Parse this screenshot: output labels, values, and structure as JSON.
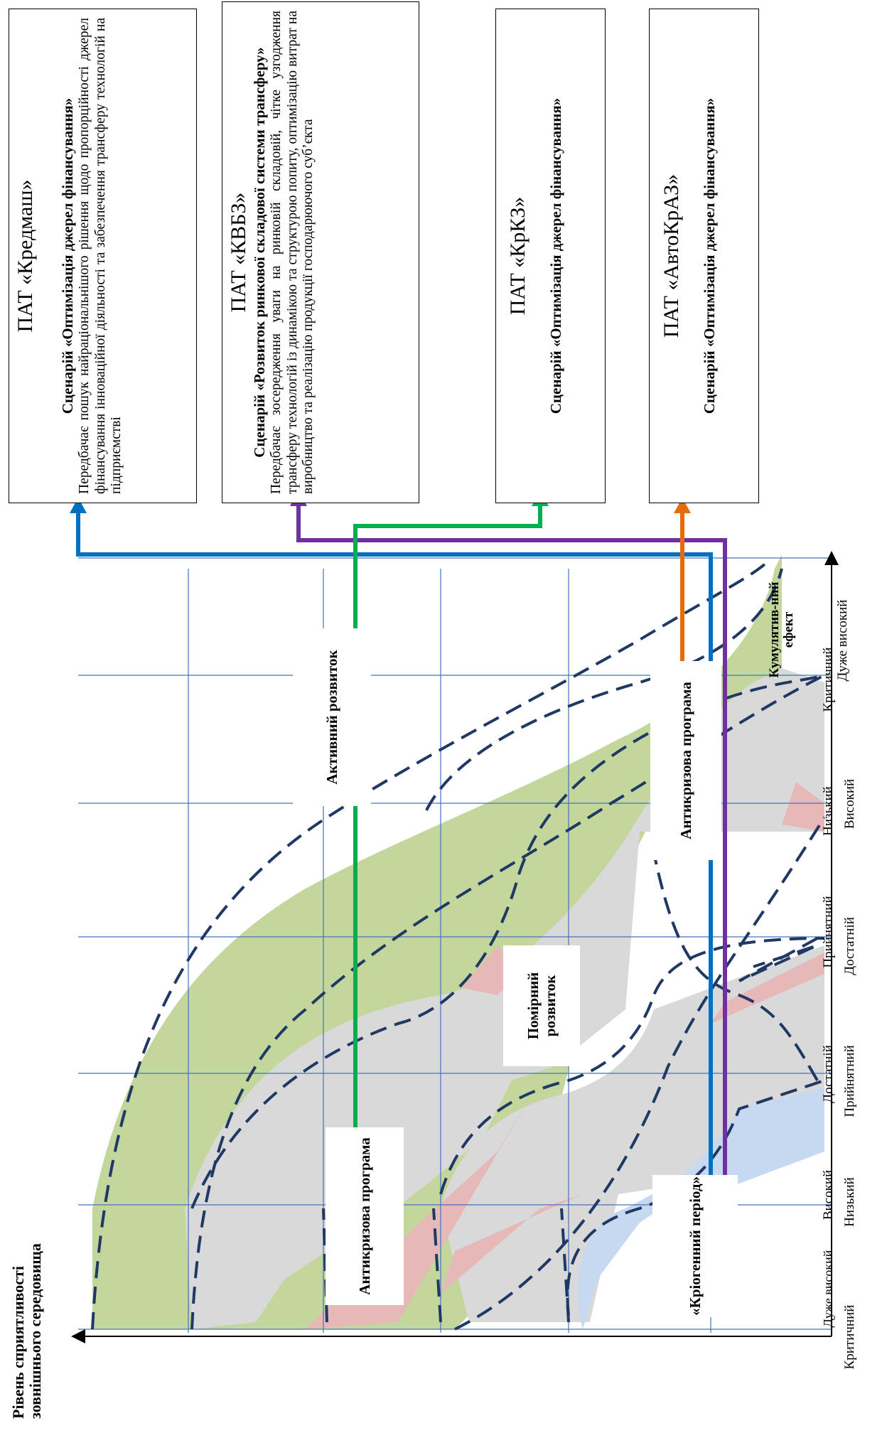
{
  "boxes": [
    {
      "company": "ПАТ «Кредмаш»",
      "scenario": "Сценарій «Оптимізація джерел фінансування»",
      "desc": "Передбачає пошук найраціональнішого рішення щодо пропорційності джерел фінансування інноваційної діяльності та забезпечення трансферу технологій на підприємстві"
    },
    {
      "company": "ПАТ «КВБЗ»",
      "scenario": "Сценарій «Розвиток ринкової складової системи трансферу»",
      "desc": "Передбачає зосередження уваги на ринковій складовій, чітке узгодження трансферу технологій із динамікою та структурою попиту, оптимізацію витрат на виробництво та реалізацію продукції господарюючого суб’єкта"
    },
    {
      "company": "ПАТ «КрКЗ»",
      "scenario": "Сценарій «Оптимізація джерел фінансування»"
    },
    {
      "company": "ПАТ «АвтоКрАЗ»",
      "scenario": "Сценарій «Оптимізація джерел фінансування»"
    }
  ],
  "regions": {
    "active": "Активний розвиток",
    "moderate": "Помірний розвиток",
    "anticrisis_right": "Антикризова програма",
    "anticrisis_left": "Антикризова програма",
    "cryo": "«Кріогенний період»"
  },
  "y_axis": {
    "title": "Рівень сприятливості зовнішнього середовища",
    "ticks": [
      "Дуже високий",
      "Високий",
      "Достатній",
      "Прийнятний",
      "Низький",
      "Критичний"
    ]
  },
  "x_axis": {
    "title": "Кумулятив-ний ефект",
    "ticks": [
      "Критичний",
      "Низький",
      "Прийнятний",
      "Достатній",
      "Високий",
      "Дуже високий"
    ]
  },
  "colors": {
    "green_area": "#c3d69b",
    "grey_area": "#d9d9d9",
    "pink_area": "#e6b8b7",
    "blue_area": "#c6d9f1",
    "grid": "#4472c4",
    "dash": "#1f3864",
    "arrow_blue": "#0070c0",
    "arrow_purple": "#7030a0",
    "arrow_green": "#00b050",
    "arrow_orange": "#e46c0a"
  }
}
